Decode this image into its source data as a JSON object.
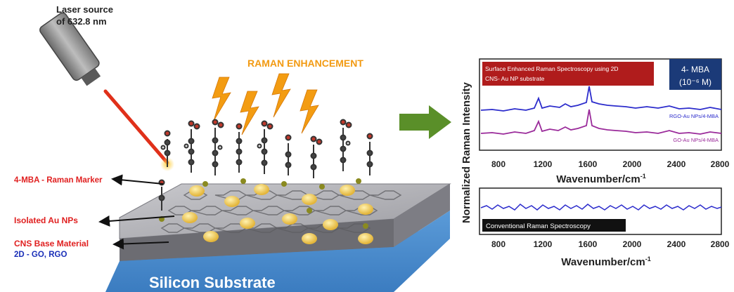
{
  "laser": {
    "label_line1": "Laser source",
    "label_line2": "of 632.8 nm"
  },
  "enhancement_label": "RAMAN ENHANCEMENT",
  "labels": {
    "marker": "4-MBA - Raman Marker",
    "au": "Isolated Au NPs",
    "cns": "CNS Base Material",
    "cns_sub": "2D - GO, RGO",
    "substrate": "Silicon Substrate"
  },
  "colors": {
    "laser_beam": "#e0301a",
    "bolt": "#f39c12",
    "arrow_green": "#5a8f29",
    "substrate_blue": "#4b8fd0",
    "ser_banner": "#b01c1c",
    "molecule_badge": "#1b3a78"
  },
  "top_chart": {
    "banner_line1": "Surface Enhanced Raman Spectroscopy using 2D",
    "banner_line2": "CNS- Au NP substrate",
    "badge_line1": "4- MBA",
    "badge_line2": "(10⁻⁶ M)",
    "series": [
      {
        "name": "RGO-Au NPs/4-MBA",
        "color": "#2c2ccc"
      },
      {
        "name": "GO-Au NPs/4-MBA",
        "color": "#9a2a9a"
      }
    ]
  },
  "bottom_chart": {
    "banner": "Conventional Raman Spectroscopy",
    "series_color": "#2c2ccc"
  },
  "axis": {
    "ylabel": "Normalized Raman Intensity",
    "xlabel": "Wavenumber/cm",
    "xlabel_sup": "-1",
    "ticks": [
      "800",
      "1200",
      "1600",
      "2000",
      "2400",
      "2800"
    ]
  }
}
